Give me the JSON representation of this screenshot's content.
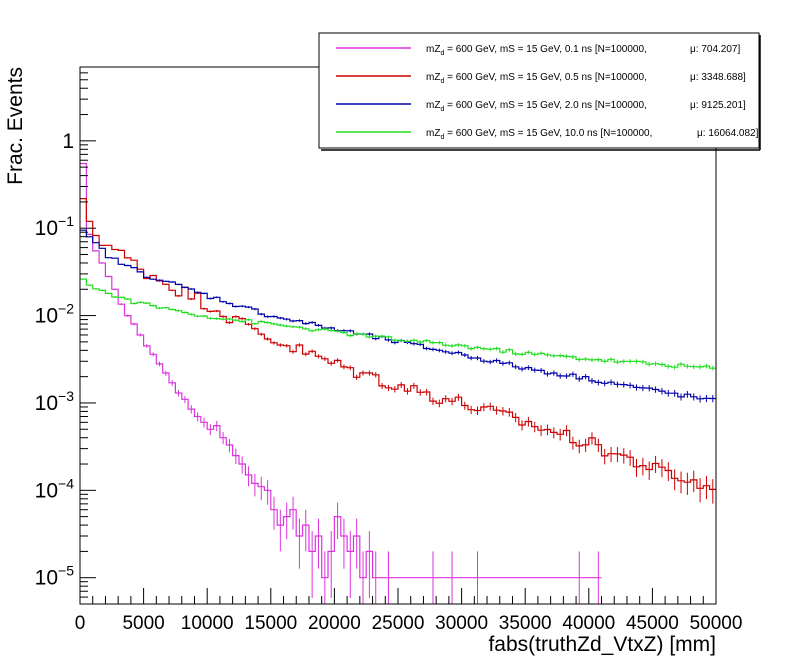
{
  "chart_data": {
    "type": "line",
    "style": "step-histogram-with-error-bars",
    "xlabel": "fabs(truthZd_VtxZ) [mm]",
    "ylabel": "Frac. Events",
    "x_range": [
      0,
      50000
    ],
    "y_scale": "log",
    "y_range": [
      5e-06,
      7
    ],
    "x_ticks": [
      0,
      5000,
      10000,
      15000,
      20000,
      25000,
      30000,
      35000,
      40000,
      45000,
      50000
    ],
    "x_tick_labels": [
      "0",
      "5000",
      "10000",
      "15000",
      "20000",
      "25000",
      "30000",
      "35000",
      "40000",
      "45000",
      "50000"
    ],
    "y_ticks": [
      1e-05,
      0.0001,
      0.001,
      0.01,
      0.1,
      1
    ],
    "y_tick_labels": [
      {
        "mantissa": "10",
        "exp": "−5"
      },
      {
        "mantissa": "10",
        "exp": "−4"
      },
      {
        "mantissa": "10",
        "exp": "−3"
      },
      {
        "mantissa": "10",
        "exp": "−2"
      },
      {
        "mantissa": "10",
        "exp": "−1"
      },
      {
        "mantissa": "1",
        "exp": ""
      }
    ],
    "bins": 100,
    "bin_width": 500,
    "legend_position": "top-right",
    "series": [
      {
        "name": "0.1 ns",
        "color": "#dd33dd",
        "legend": {
          "pre": "mZ",
          "sub": "d",
          "post": " = 600 GeV, mS = 15 GeV, 0.1 ns [N=100000,",
          "mu": "μ: 704.207]"
        },
        "points": [
          [
            250,
            0.55
          ],
          [
            750,
            0.085
          ],
          [
            1250,
            0.055
          ],
          [
            1750,
            0.04
          ],
          [
            2250,
            0.028
          ],
          [
            2750,
            0.02
          ],
          [
            3250,
            0.0135
          ],
          [
            3750,
            0.01
          ],
          [
            4250,
            0.008
          ],
          [
            4750,
            0.006
          ],
          [
            5250,
            0.0045
          ],
          [
            5750,
            0.0036
          ],
          [
            6250,
            0.0028
          ],
          [
            6750,
            0.0022
          ],
          [
            7250,
            0.0017
          ],
          [
            7750,
            0.0013
          ],
          [
            8250,
            0.0011
          ],
          [
            8750,
            0.00085
          ],
          [
            9250,
            0.0007
          ],
          [
            9750,
            0.0006
          ],
          [
            10250,
            0.0005
          ],
          [
            10750,
            0.00055
          ],
          [
            11250,
            0.0004
          ],
          [
            11750,
            0.00033
          ],
          [
            12250,
            0.00025
          ],
          [
            12750,
            0.0002
          ],
          [
            13250,
            0.00015
          ],
          [
            13750,
            0.00012
          ],
          [
            14250,
            0.00011
          ],
          [
            14750,
            0.0001
          ],
          [
            15250,
            6e-05
          ],
          [
            15750,
            4e-05
          ],
          [
            16250,
            5e-05
          ],
          [
            16750,
            6e-05
          ],
          [
            17250,
            3e-05
          ],
          [
            17750,
            4e-05
          ],
          [
            18250,
            2e-05
          ],
          [
            18750,
            3e-05
          ],
          [
            19250,
            1e-05
          ],
          [
            19750,
            2e-05
          ],
          [
            20250,
            5e-05
          ],
          [
            20750,
            3e-05
          ],
          [
            21250,
            2e-05
          ],
          [
            21750,
            3e-05
          ],
          [
            22250,
            1e-05
          ],
          [
            22750,
            2e-05
          ],
          [
            23250,
            1e-05
          ],
          [
            24250,
            1e-05
          ],
          [
            27750,
            1e-05
          ],
          [
            29250,
            1e-05
          ],
          [
            31250,
            1e-05
          ],
          [
            39250,
            1e-05
          ],
          [
            40750,
            1e-05
          ]
        ]
      },
      {
        "name": "0.5 ns",
        "color": "#cc0000",
        "legend": {
          "pre": "mZ",
          "sub": "d",
          "post": " = 600 GeV, mS = 15 GeV, 0.5 ns [N=100000,",
          "mu": "μ: 3348.688]"
        },
        "x_start": 250,
        "step": 500,
        "anchors": [
          [
            250,
            0.19
          ],
          [
            1250,
            0.085
          ],
          [
            2500,
            0.06
          ],
          [
            5000,
            0.033
          ],
          [
            7500,
            0.021
          ],
          [
            10000,
            0.014
          ],
          [
            12500,
            0.0085
          ],
          [
            15000,
            0.0055
          ],
          [
            20000,
            0.0028
          ],
          [
            25000,
            0.0016
          ],
          [
            30000,
            0.001
          ],
          [
            35000,
            0.0006
          ],
          [
            40000,
            0.00035
          ],
          [
            45000,
            0.00018
          ],
          [
            50000,
            0.0001
          ]
        ],
        "noise": 0.18
      },
      {
        "name": "2.0 ns",
        "color": "#0000aa",
        "legend": {
          "pre": "mZ",
          "sub": "d",
          "post": " = 600 GeV, mS = 15 GeV, 2.0 ns [N=100000,",
          "mu": "μ: 9125.201]"
        },
        "x_start": 250,
        "step": 500,
        "anchors": [
          [
            250,
            0.09
          ],
          [
            2500,
            0.045
          ],
          [
            5000,
            0.03
          ],
          [
            10000,
            0.017
          ],
          [
            15000,
            0.01
          ],
          [
            20000,
            0.007
          ],
          [
            25000,
            0.005
          ],
          [
            30000,
            0.0036
          ],
          [
            35000,
            0.0025
          ],
          [
            40000,
            0.0019
          ],
          [
            45000,
            0.0014
          ],
          [
            50000,
            0.00105
          ]
        ],
        "noise": 0.06
      },
      {
        "name": "10.0 ns",
        "color": "#22dd22",
        "legend": {
          "pre": "mZ",
          "sub": "d",
          "post": " = 600 GeV, mS = 15 GeV, 10.0 ns [N=100000,",
          "mu": "μ: 16064.082]"
        },
        "x_start": 250,
        "step": 500,
        "anchors": [
          [
            250,
            0.025
          ],
          [
            2500,
            0.017
          ],
          [
            5000,
            0.0135
          ],
          [
            10000,
            0.0098
          ],
          [
            15000,
            0.008
          ],
          [
            20000,
            0.0065
          ],
          [
            25000,
            0.0053
          ],
          [
            30000,
            0.0045
          ],
          [
            35000,
            0.0037
          ],
          [
            40000,
            0.0032
          ],
          [
            45000,
            0.0028
          ],
          [
            50000,
            0.0025
          ]
        ],
        "noise": 0.05
      }
    ]
  }
}
